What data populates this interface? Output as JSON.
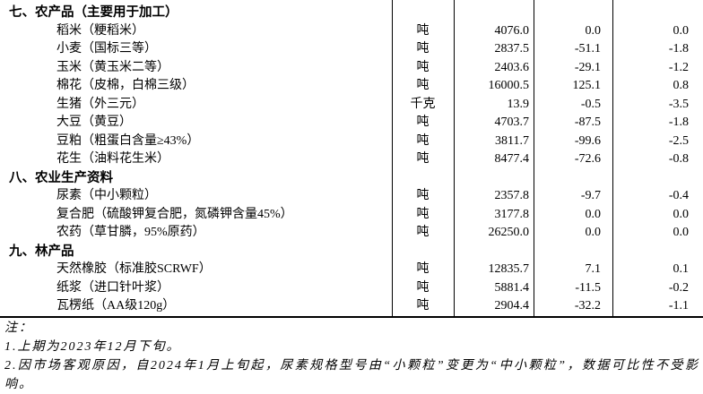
{
  "colors": {
    "background": "#ffffff",
    "text": "#000000",
    "grid_line": "#000000"
  },
  "table": {
    "rows": [
      {
        "section": true,
        "label": "七、农产品（主要用于加工）"
      },
      {
        "section": false,
        "label": "稻米（粳稻米）",
        "unit": "吨",
        "value": "4076.0",
        "change": "0.0",
        "pct": "0.0"
      },
      {
        "section": false,
        "label": "小麦（国标三等）",
        "unit": "吨",
        "value": "2837.5",
        "change": "-51.1",
        "pct": "-1.8"
      },
      {
        "section": false,
        "label": "玉米（黄玉米二等）",
        "unit": "吨",
        "value": "2403.6",
        "change": "-29.1",
        "pct": "-1.2"
      },
      {
        "section": false,
        "label": "棉花（皮棉，白棉三级）",
        "unit": "吨",
        "value": "16000.5",
        "change": "125.1",
        "pct": "0.8"
      },
      {
        "section": false,
        "label": "生猪（外三元）",
        "unit": "千克",
        "value": "13.9",
        "change": "-0.5",
        "pct": "-3.5"
      },
      {
        "section": false,
        "label": "大豆（黄豆）",
        "unit": "吨",
        "value": "4703.7",
        "change": "-87.5",
        "pct": "-1.8"
      },
      {
        "section": false,
        "label": "豆粕（粗蛋白含量≥43%）",
        "unit": "吨",
        "value": "3811.7",
        "change": "-99.6",
        "pct": "-2.5"
      },
      {
        "section": false,
        "label": "花生（油料花生米）",
        "unit": "吨",
        "value": "8477.4",
        "change": "-72.6",
        "pct": "-0.8"
      },
      {
        "section": true,
        "label": "八、农业生产资料"
      },
      {
        "section": false,
        "label": "尿素（中小颗粒）",
        "unit": "吨",
        "value": "2357.8",
        "change": "-9.7",
        "pct": "-0.4"
      },
      {
        "section": false,
        "label": "复合肥（硫酸钾复合肥，氮磷钾含量45%）",
        "unit": "吨",
        "value": "3177.8",
        "change": "0.0",
        "pct": "0.0"
      },
      {
        "section": false,
        "label": "农药（草甘膦，95%原药）",
        "unit": "吨",
        "value": "26250.0",
        "change": "0.0",
        "pct": "0.0"
      },
      {
        "section": true,
        "label": "九、林产品"
      },
      {
        "section": false,
        "label": "天然橡胶（标准胶SCRWF）",
        "unit": "吨",
        "value": "12835.7",
        "change": "7.1",
        "pct": "0.1"
      },
      {
        "section": false,
        "label": "纸浆（进口针叶浆）",
        "unit": "吨",
        "value": "5881.4",
        "change": "-11.5",
        "pct": "-0.2"
      },
      {
        "section": false,
        "label": "瓦楞纸（AA级120g）",
        "unit": "吨",
        "value": "2904.4",
        "change": "-32.2",
        "pct": "-1.1"
      }
    ]
  },
  "notes": {
    "title": "注：",
    "items": [
      "1.上期为2023年12月下旬。",
      "2.因市场客观原因，自2024年1月上旬起，尿素规格型号由“小颗粒”变更为“中小颗粒”，数据可比性不受影响。"
    ]
  }
}
